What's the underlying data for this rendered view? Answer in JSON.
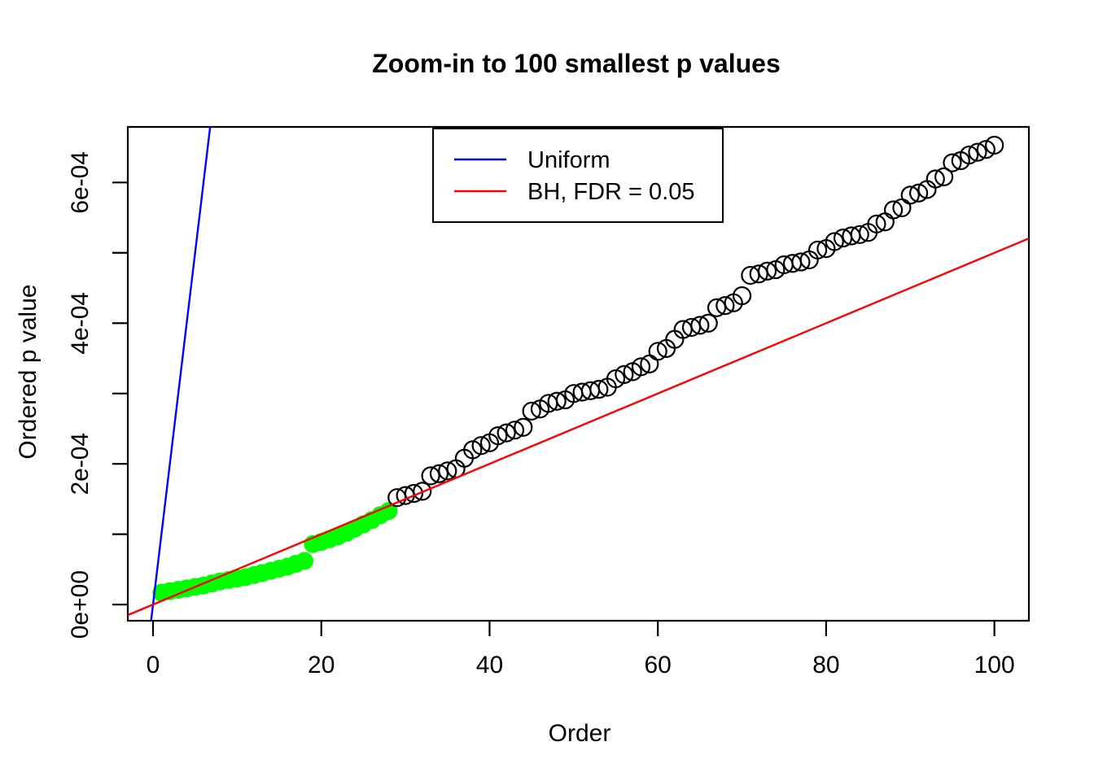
{
  "figure": {
    "background": "#ffffff"
  },
  "chart_data": {
    "type": "scatter",
    "title": "Zoom-in to 100 smallest p values",
    "xlabel": "Order",
    "ylabel": "Ordered p value",
    "xlim": [
      -3.0,
      104.1
    ],
    "ylim": [
      -2.3e-05,
      0.000679
    ],
    "grid": false,
    "x_ticks": [
      0,
      20,
      40,
      60,
      80,
      100
    ],
    "x_tick_labels": [
      "0",
      "20",
      "40",
      "60",
      "80",
      "100"
    ],
    "y_ticks": [
      0,
      0.0001,
      0.0002,
      0.0003,
      0.0004,
      0.0005,
      0.0006
    ],
    "y_tick_labels": [
      "0e+00",
      "",
      "2e-04",
      "",
      "4e-04",
      "",
      "6e-04"
    ],
    "colors": {
      "uniform_line": "#0000FF",
      "bh_line": "#FF0000",
      "significant_point": "#00FF00",
      "nonsignificant_point": "#000000"
    },
    "legend": {
      "position": "top-center-inside",
      "entries": [
        {
          "label": "Uniform",
          "color": "#0000FF",
          "style": "line"
        },
        {
          "label": "BH, FDR = 0.05",
          "color": "#FF0000",
          "style": "line"
        }
      ]
    },
    "series": [
      {
        "name": "bh-significant-points",
        "type": "points",
        "marker": "filled-circle",
        "color": "#00FF00",
        "x": [
          1,
          2,
          3,
          4,
          5,
          6,
          7,
          8,
          9,
          10,
          11,
          12,
          13,
          14,
          15,
          16,
          17,
          18,
          19,
          20,
          21,
          22,
          23,
          24,
          25,
          26,
          27,
          28
        ],
        "y": [
          1.7e-05,
          1.9e-05,
          2.1e-05,
          2.3e-05,
          2.5e-05,
          2.7e-05,
          3e-05,
          3.3e-05,
          3.5e-05,
          3.7e-05,
          3.9e-05,
          4.2e-05,
          4.5e-05,
          4.8e-05,
          5.1e-05,
          5.4e-05,
          5.8e-05,
          6.2e-05,
          8.6e-05,
          8.9e-05,
          9.3e-05,
          9.7e-05,
          0.000102,
          0.000108,
          0.000114,
          0.00012,
          0.000127,
          0.000133
        ]
      },
      {
        "name": "not-significant-points",
        "type": "points",
        "marker": "open-circle",
        "color": "#000000",
        "x": [
          29,
          30,
          31,
          32,
          33,
          34,
          35,
          36,
          37,
          38,
          39,
          40,
          41,
          42,
          43,
          44,
          45,
          46,
          47,
          48,
          49,
          50,
          51,
          52,
          53,
          54,
          55,
          56,
          57,
          58,
          59,
          60,
          61,
          62,
          63,
          64,
          65,
          66,
          67,
          68,
          69,
          70,
          71,
          72,
          73,
          74,
          75,
          76,
          77,
          78,
          79,
          80,
          81,
          82,
          83,
          84,
          85,
          86,
          87,
          88,
          89,
          90,
          91,
          92,
          93,
          94,
          95,
          96,
          97,
          98,
          99,
          100
        ],
        "y": [
          0.000152,
          0.000155,
          0.000158,
          0.000161,
          0.000183,
          0.000186,
          0.00019,
          0.000193,
          0.000208,
          0.00022,
          0.000226,
          0.00023,
          0.00024,
          0.000244,
          0.000248,
          0.000252,
          0.000275,
          0.000278,
          0.000286,
          0.000289,
          0.000291,
          0.0003,
          0.000302,
          0.000304,
          0.000306,
          0.000309,
          0.000321,
          0.000327,
          0.000331,
          0.000338,
          0.000342,
          0.00036,
          0.000364,
          0.000377,
          0.000391,
          0.000394,
          0.000397,
          0.0004,
          0.000422,
          0.000425,
          0.000429,
          0.000439,
          0.000468,
          0.00047,
          0.000474,
          0.000476,
          0.000483,
          0.000485,
          0.000487,
          0.00049,
          0.000504,
          0.000506,
          0.000516,
          0.000521,
          0.000524,
          0.000526,
          0.000529,
          0.000541,
          0.000544,
          0.000561,
          0.000564,
          0.000582,
          0.000585,
          0.00059,
          0.000605,
          0.000608,
          0.000628,
          0.000631,
          0.000639,
          0.000643,
          0.000647,
          0.000653
        ]
      },
      {
        "name": "uniform-line",
        "type": "line",
        "color": "#0000FF",
        "slope": 0.0001,
        "intercept": 0
      },
      {
        "name": "bh-fdr-line",
        "type": "line",
        "color": "#FF0000",
        "slope": 5e-06,
        "intercept": 0
      }
    ]
  }
}
